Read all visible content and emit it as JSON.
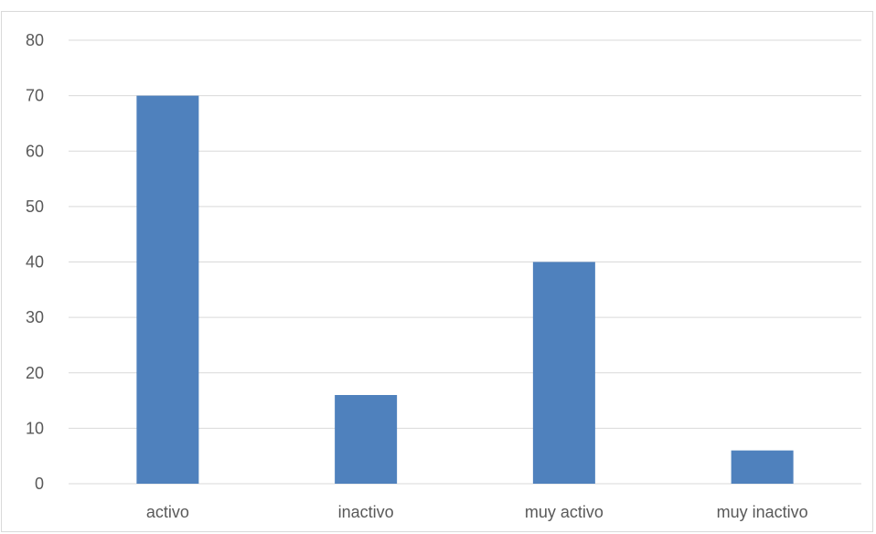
{
  "chart_data": {
    "type": "bar",
    "categories": [
      "activo",
      "inactivo",
      "muy activo",
      "muy inactivo"
    ],
    "values": [
      70,
      16,
      40,
      6
    ],
    "title": "",
    "xlabel": "",
    "ylabel": "",
    "ylim": [
      0,
      80
    ],
    "yticks": [
      0,
      10,
      20,
      30,
      40,
      50,
      60,
      70,
      80
    ],
    "grid": true,
    "legend": "none",
    "bar_color": "#4f81bd",
    "grid_color": "#d9d9d9"
  }
}
